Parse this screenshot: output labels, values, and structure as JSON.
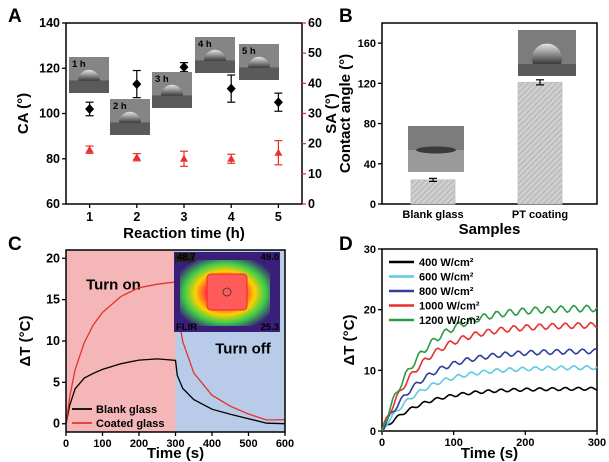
{
  "chart_data": [
    {
      "panel": "A",
      "type": "scatter",
      "xlabel": "Reaction time (h)",
      "ylabel": "CA (°)",
      "y2label": "SA (°)",
      "x": [
        1,
        2,
        3,
        4,
        5
      ],
      "xlim": [
        0.5,
        5.5
      ],
      "ylim": [
        60,
        140
      ],
      "y2lim": [
        0,
        60
      ],
      "yticks": [
        60,
        80,
        100,
        120,
        140
      ],
      "y2ticks": [
        0,
        10,
        20,
        30,
        40,
        50,
        60
      ],
      "xticks": [
        1,
        2,
        3,
        4,
        5
      ],
      "series": [
        {
          "axis": "left",
          "color": "#000000",
          "marker": "diamond",
          "values": [
            102,
            113,
            120.5,
            111,
            105
          ],
          "errors": [
            3,
            6,
            2,
            6,
            4
          ]
        },
        {
          "axis": "right",
          "color": "#e8312c",
          "marker": "triangle",
          "values": [
            18,
            15.5,
            15,
            15,
            17
          ],
          "errors": [
            1.2,
            1.2,
            2.5,
            1.5,
            4
          ]
        }
      ],
      "insets": [
        "1 h",
        "2 h",
        "3 h",
        "4 h",
        "5 h"
      ],
      "colors": {
        "left_axis": "#000000",
        "right_axis": "#e8312c"
      }
    },
    {
      "panel": "B",
      "type": "bar",
      "xlabel": "Samples",
      "ylabel": "Contact angle (°)",
      "categories": [
        "Blank glass",
        "PT coating"
      ],
      "values": [
        24,
        121
      ],
      "errors": [
        1.5,
        2.5
      ],
      "ylim": [
        0,
        180
      ],
      "yticks": [
        0,
        40,
        80,
        120,
        160
      ],
      "colors": {
        "bar": "#c8c8c8"
      }
    },
    {
      "panel": "C",
      "type": "line",
      "xlabel": "Time (s)",
      "ylabel": "ΔT (°C)",
      "xlim": [
        0,
        600
      ],
      "ylim": [
        -1,
        21
      ],
      "xticks": [
        0,
        100,
        200,
        300,
        400,
        500,
        600
      ],
      "yticks": [
        0,
        5,
        10,
        15,
        20
      ],
      "series": [
        {
          "name": "Blank glass",
          "color": "#000000",
          "x": [
            0,
            10,
            25,
            50,
            75,
            100,
            150,
            200,
            250,
            300,
            305,
            320,
            350,
            400,
            450,
            500,
            550,
            600
          ],
          "y": [
            0,
            2.0,
            4.0,
            5.5,
            6.3,
            6.8,
            7.3,
            7.5,
            7.6,
            7.6,
            6.0,
            4.5,
            3.0,
            1.6,
            0.9,
            0.5,
            0.2,
            0
          ]
        },
        {
          "name": "Coated glass",
          "color": "#e8312c",
          "x": [
            0,
            10,
            25,
            50,
            75,
            100,
            150,
            200,
            250,
            300,
            305,
            320,
            350,
            400,
            450,
            500,
            550,
            600
          ],
          "y": [
            0,
            3.0,
            6.5,
            10.0,
            12.2,
            13.5,
            15.2,
            16.2,
            16.8,
            17.3,
            14.0,
            10.0,
            6.0,
            3.2,
            2.0,
            1.3,
            0.7,
            0.5
          ]
        }
      ],
      "annotations": {
        "on": "Turn on",
        "off": "Turn off"
      },
      "regions": {
        "on": [
          0,
          300
        ],
        "off": [
          300,
          600
        ]
      },
      "inset": {
        "brand": "FLIR",
        "max_temp": "48.7",
        "scale_top": "49.0",
        "scale_bottom": "25.3"
      },
      "colors": {
        "on_region": "#f4b6b6",
        "off_region": "#b8cbe8",
        "on_text": "#e8474a",
        "off_text": "#3c6db4"
      }
    },
    {
      "panel": "D",
      "type": "line",
      "xlabel": "Time (s)",
      "ylabel": "ΔT (°C)",
      "xlim": [
        0,
        300
      ],
      "ylim": [
        0,
        30
      ],
      "xticks": [
        0,
        100,
        200,
        300
      ],
      "yticks": [
        0,
        10,
        20,
        30
      ],
      "series": [
        {
          "name": "400 W/cm²",
          "color": "#000000",
          "final": 7
        },
        {
          "name": "600 W/cm²",
          "color": "#5ecbe0",
          "final": 10.5
        },
        {
          "name": "800 W/cm²",
          "color": "#2f3f99",
          "final": 13.2
        },
        {
          "name": "1000 W/cm²",
          "color": "#e8312c",
          "final": 17.5
        },
        {
          "name": "1200 W/cm²",
          "color": "#2e9a45",
          "final": 20.3
        }
      ]
    }
  ],
  "panels": {
    "a": "A",
    "b": "B",
    "c": "C",
    "d": "D"
  }
}
